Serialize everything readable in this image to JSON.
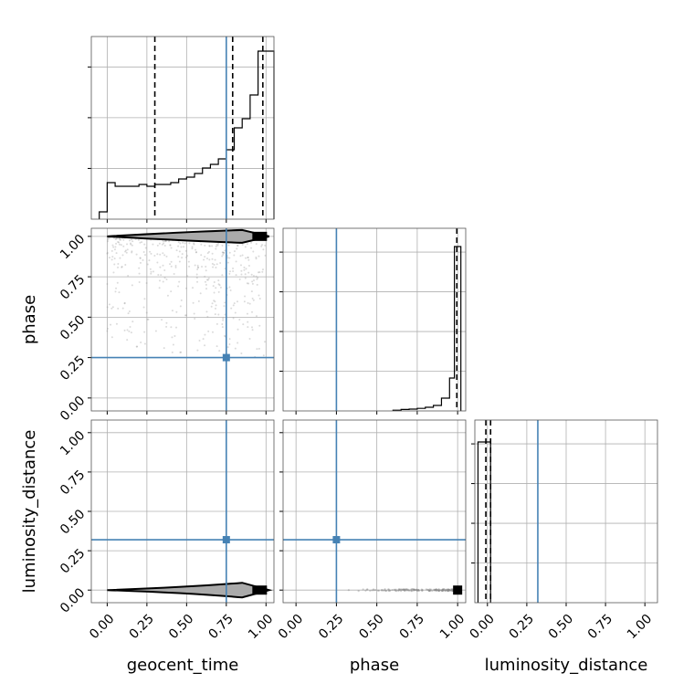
{
  "chart_data": {
    "type": "corner",
    "parameters": [
      "geocent_time",
      "phase",
      "luminosity_distance"
    ],
    "xlabels": [
      "geocent_time",
      "phase",
      "luminosity_distance"
    ],
    "ylabels": {
      "row1": "phase",
      "row2": "luminosity_distance"
    },
    "tick_labels": [
      "0.00",
      "0.25",
      "0.50",
      "0.75",
      "1.00"
    ],
    "ticks": [
      0,
      0.25,
      0.5,
      0.75,
      1.0
    ],
    "ranges": {
      "geocent_time": [
        -0.1,
        1.05
      ],
      "phase": [
        -0.08,
        1.05
      ],
      "luminosity_distance": [
        -0.08,
        1.08
      ]
    },
    "truths": {
      "geocent_time": 0.75,
      "phase": 0.25,
      "luminosity_distance": 0.32
    },
    "quantiles": {
      "geocent_time": [
        0.3,
        0.79,
        0.98
      ],
      "phase": [
        0.995
      ],
      "luminosity_distance": [
        -0.01,
        0.02
      ]
    },
    "marginals": {
      "geocent_time": {
        "edges": [
          -0.05,
          0.0,
          0.05,
          0.1,
          0.15,
          0.2,
          0.25,
          0.3,
          0.35,
          0.4,
          0.45,
          0.5,
          0.55,
          0.6,
          0.65,
          0.7,
          0.75,
          0.8,
          0.85,
          0.9,
          0.95,
          1.0,
          1.05
        ],
        "counts": [
          0.04,
          0.2,
          0.18,
          0.18,
          0.18,
          0.19,
          0.18,
          0.19,
          0.19,
          0.2,
          0.22,
          0.23,
          0.25,
          0.28,
          0.3,
          0.33,
          0.38,
          0.5,
          0.55,
          0.68,
          0.92,
          0.92
        ]
      },
      "phase": {
        "edges": [
          0.6,
          0.65,
          0.7,
          0.75,
          0.8,
          0.85,
          0.9,
          0.95,
          0.98,
          1.02
        ],
        "counts": [
          0.004,
          0.008,
          0.01,
          0.014,
          0.02,
          0.03,
          0.07,
          0.18,
          0.9
        ]
      },
      "luminosity_distance": {
        "edges": [
          -0.06,
          0.02
        ],
        "counts": [
          0.88
        ]
      }
    },
    "grid": true
  }
}
